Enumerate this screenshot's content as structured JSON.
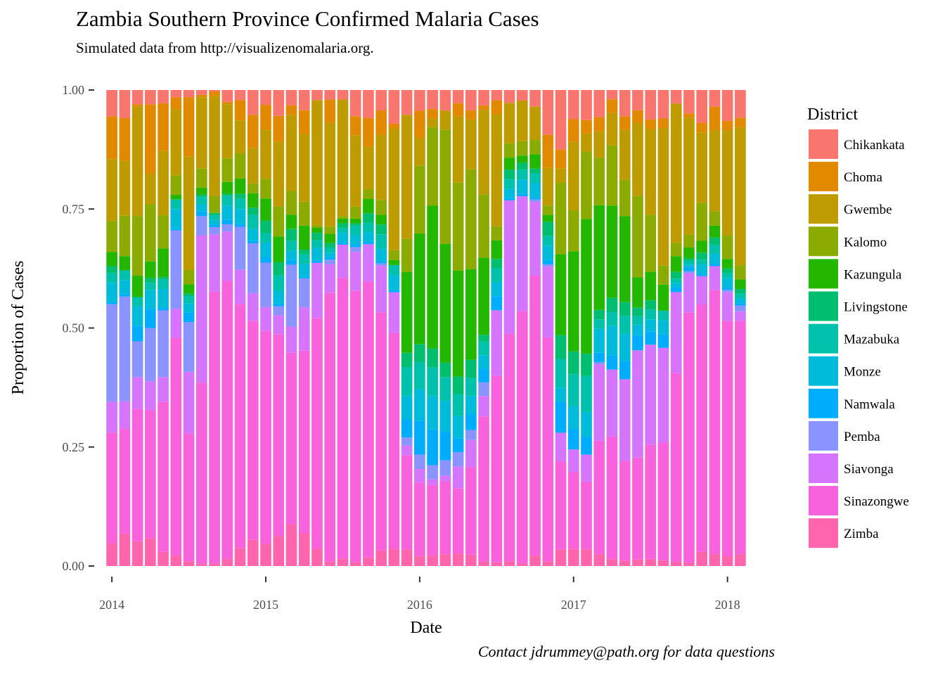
{
  "chart_data": {
    "type": "bar",
    "stacked": true,
    "title": "Zambia Southern Province Confirmed Malaria Cases",
    "subtitle": "Simulated data from http://visualizenomalaria.org.",
    "xlabel": "Date",
    "ylabel": "Proportion of Cases",
    "caption": "Contact jdrummey@path.org for data questions",
    "ylim": [
      0,
      1
    ],
    "y_ticks": [
      "0.00",
      "0.25",
      "0.50",
      "0.75",
      "1.00"
    ],
    "x_ticks": [
      "2014",
      "2015",
      "2016",
      "2017",
      "2018"
    ],
    "x_tick_positions": [
      0,
      12,
      24,
      36,
      48
    ],
    "legend": {
      "title": "District",
      "position": "right"
    },
    "grid": false,
    "colors": [
      "#F8766D",
      "#E18A00",
      "#BE9C00",
      "#8CAB00",
      "#24B700",
      "#00BE70",
      "#00C1AB",
      "#00BBDA",
      "#00ACFC",
      "#8B93FF",
      "#D575FE",
      "#F962DD",
      "#FF65AC"
    ],
    "series_order_top_to_bottom": [
      "Chikankata",
      "Choma",
      "Gwembe",
      "Kalomo",
      "Kazungula",
      "Livingstone",
      "Mazabuka",
      "Monze",
      "Namwala",
      "Pemba",
      "Siavonga",
      "Sinazongwe",
      "Zimba"
    ],
    "x": [
      "2014-01",
      "2014-02",
      "2014-03",
      "2014-04",
      "2014-05",
      "2014-06",
      "2014-07",
      "2014-08",
      "2014-09",
      "2014-10",
      "2014-11",
      "2014-12",
      "2015-01",
      "2015-02",
      "2015-03",
      "2015-04",
      "2015-05",
      "2015-06",
      "2015-07",
      "2015-08",
      "2015-09",
      "2015-10",
      "2015-11",
      "2015-12",
      "2016-01",
      "2016-02",
      "2016-03",
      "2016-04",
      "2016-05",
      "2016-06",
      "2016-07",
      "2016-08",
      "2016-09",
      "2016-10",
      "2016-11",
      "2016-12",
      "2017-01",
      "2017-02",
      "2017-03",
      "2017-04",
      "2017-05",
      "2017-06",
      "2017-07",
      "2017-08",
      "2017-09",
      "2017-10",
      "2017-11",
      "2017-12",
      "2018-01",
      "2018-02"
    ],
    "series": [
      {
        "name": "Zimba",
        "values": [
          0.048,
          0.068,
          0.052,
          0.058,
          0.03,
          0.022,
          0.01,
          0.005,
          0.005,
          0.015,
          0.035,
          0.055,
          0.045,
          0.058,
          0.088,
          0.068,
          0.035,
          0.01,
          0.015,
          0.008,
          0.018,
          0.032,
          0.035,
          0.035,
          0.022,
          0.022,
          0.025,
          0.028,
          0.025,
          0.01,
          0.008,
          0.01,
          0.005,
          0.022,
          0.01,
          0.035,
          0.038,
          0.038,
          0.025,
          0.015,
          0.012,
          0.015,
          0.015,
          0.012,
          0.01,
          0.008,
          0.03,
          0.025,
          0.02,
          0.025
        ]
      },
      {
        "name": "Sinazongwe",
        "values": [
          0.232,
          0.22,
          0.278,
          0.27,
          0.315,
          0.458,
          0.27,
          0.38,
          0.572,
          0.59,
          0.482,
          0.46,
          0.432,
          0.39,
          0.36,
          0.38,
          0.46,
          0.57,
          0.59,
          0.57,
          0.58,
          0.49,
          0.435,
          0.198,
          0.163,
          0.148,
          0.153,
          0.148,
          0.193,
          0.32,
          0.4,
          0.478,
          0.528,
          0.588,
          0.475,
          0.185,
          0.168,
          0.15,
          0.238,
          0.265,
          0.22,
          0.238,
          0.24,
          0.248,
          0.42,
          0.578,
          0.525,
          0.555,
          0.495,
          0.49
        ]
      },
      {
        "name": "Siavonga",
        "values": [
          0.065,
          0.058,
          0.067,
          0.06,
          0.052,
          0.06,
          0.13,
          0.31,
          0.12,
          0.105,
          0.068,
          0.058,
          0.048,
          0.037,
          0.055,
          0.09,
          0.11,
          0.06,
          0.07,
          0.082,
          0.078,
          0.096,
          0.082,
          0.02,
          0.03,
          0.012,
          0.012,
          0.05,
          0.06,
          0.045,
          0.14,
          0.28,
          0.24,
          0.155,
          0.15,
          0.06,
          0.05,
          0.06,
          0.16,
          0.145,
          0.18,
          0.25,
          0.21,
          0.2,
          0.18,
          0.09,
          0.06,
          0.05,
          0.06,
          0.02
        ]
      },
      {
        "name": "Pemba",
        "values": [
          0.205,
          0.22,
          0.075,
          0.112,
          0.14,
          0.165,
          0.105,
          0.04,
          0.015,
          0.015,
          0.085,
          0.105,
          0.09,
          0.017,
          0.13,
          0.06,
          0.0,
          0.01,
          0.0,
          0.01,
          0.0,
          0.005,
          0.0,
          0.017,
          0.032,
          0.03,
          0.032,
          0.032,
          0.022,
          0.03,
          0.0,
          0.0,
          0.0,
          0.005,
          0.005,
          0.0,
          0.0,
          0.0,
          0.005,
          0.0,
          0.0,
          0.0,
          0.0,
          0.0,
          0.0,
          0.005,
          0.0,
          0.0,
          0.005,
          0.012
        ]
      },
      {
        "name": "Namwala",
        "values": [
          0.005,
          0.005,
          0.033,
          0.04,
          0.005,
          0.005,
          0.02,
          0.01,
          0.005,
          0.01,
          0.005,
          0.005,
          0.01,
          0.005,
          0.01,
          0.005,
          0.005,
          0.005,
          0.005,
          0.005,
          0.005,
          0.005,
          0.005,
          0.038,
          0.075,
          0.075,
          0.06,
          0.032,
          0.035,
          0.03,
          0.03,
          0.005,
          0.005,
          0.005,
          0.01,
          0.065,
          0.045,
          0.04,
          0.02,
          0.03,
          0.04,
          0.035,
          0.028,
          0.028,
          0.01,
          0.01,
          0.005,
          0.005,
          0.005,
          0.005
        ]
      },
      {
        "name": "Monze",
        "values": [
          0.04,
          0.03,
          0.04,
          0.04,
          0.04,
          0.04,
          0.02,
          0.015,
          0.01,
          0.03,
          0.03,
          0.025,
          0.03,
          0.025,
          0.02,
          0.025,
          0.025,
          0.01,
          0.02,
          0.02,
          0.02,
          0.025,
          0.03,
          0.05,
          0.07,
          0.07,
          0.065,
          0.05,
          0.04,
          0.03,
          0.03,
          0.02,
          0.03,
          0.03,
          0.03,
          0.03,
          0.05,
          0.055,
          0.05,
          0.065,
          0.06,
          0.025,
          0.025,
          0.03,
          0.01,
          0.005,
          0.02,
          0.02,
          0.02,
          0.01
        ]
      },
      {
        "name": "Mazabuka",
        "values": [
          0.02,
          0.02,
          0.02,
          0.015,
          0.02,
          0.02,
          0.015,
          0.015,
          0.01,
          0.02,
          0.02,
          0.03,
          0.02,
          0.03,
          0.02,
          0.02,
          0.015,
          0.01,
          0.01,
          0.02,
          0.02,
          0.03,
          0.02,
          0.06,
          0.06,
          0.06,
          0.05,
          0.05,
          0.04,
          0.03,
          0.03,
          0.02,
          0.02,
          0.02,
          0.02,
          0.06,
          0.07,
          0.08,
          0.02,
          0.03,
          0.04,
          0.02,
          0.02,
          0.02,
          0.01,
          0.01,
          0.01,
          0.02,
          0.01,
          0.01
        ]
      },
      {
        "name": "Livingstone",
        "values": [
          0.015,
          0.0,
          0.0,
          0.01,
          0.005,
          0.0,
          0.005,
          0.005,
          0.005,
          0.005,
          0.01,
          0.015,
          0.025,
          0.025,
          0.025,
          0.01,
          0.015,
          0.01,
          0.01,
          0.005,
          0.02,
          0.02,
          0.0,
          0.03,
          0.04,
          0.04,
          0.03,
          0.04,
          0.04,
          0.015,
          0.02,
          0.02,
          0.015,
          0.01,
          0.03,
          0.05,
          0.05,
          0.05,
          0.02,
          0.03,
          0.03,
          0.02,
          0.02,
          0.0,
          0.015,
          0.005,
          0.015,
          0.015,
          0.01,
          0.01
        ]
      },
      {
        "name": "Kazungula",
        "values": [
          0.03,
          0.03,
          0.045,
          0.035,
          0.06,
          0.01,
          0.02,
          0.015,
          0.0,
          0.025,
          0.03,
          0.03,
          0.045,
          0.05,
          0.03,
          0.05,
          0.01,
          0.02,
          0.01,
          0.01,
          0.03,
          0.02,
          0.01,
          0.17,
          0.245,
          0.3,
          0.25,
          0.24,
          0.2,
          0.17,
          0.04,
          0.025,
          0.015,
          0.03,
          0.015,
          0.17,
          0.22,
          0.3,
          0.22,
          0.2,
          0.19,
          0.07,
          0.06,
          0.055,
          0.035,
          0.025,
          0.025,
          0.025,
          0.02,
          0.02
        ]
      },
      {
        "name": "Kalomo",
        "values": [
          0.065,
          0.085,
          0.125,
          0.12,
          0.07,
          0.04,
          0.03,
          0.04,
          0.035,
          0.05,
          0.05,
          0.02,
          0.04,
          0.058,
          0.05,
          0.05,
          0.005,
          0.015,
          0.005,
          0.025,
          0.02,
          0.03,
          0.02,
          0.07,
          0.15,
          0.165,
          0.24,
          0.2,
          0.22,
          0.14,
          0.03,
          0.03,
          0.03,
          0.03,
          0.02,
          0.15,
          0.09,
          0.15,
          0.1,
          0.13,
          0.08,
          0.19,
          0.12,
          0.04,
          0.03,
          0.03,
          0.08,
          0.03,
          0.05,
          0.03
        ]
      },
      {
        "name": "Gwembe",
        "values": [
          0.13,
          0.115,
          0.23,
          0.065,
          0.135,
          0.14,
          0.24,
          0.15,
          0.21,
          0.115,
          0.065,
          0.075,
          0.1,
          0.125,
          0.16,
          0.14,
          0.25,
          0.22,
          0.245,
          0.15,
          0.09,
          0.135,
          0.245,
          0.26,
          0.062,
          0.018,
          0.04,
          0.15,
          0.11,
          0.186,
          0.24,
          0.085,
          0.085,
          0.07,
          0.08,
          0.03,
          0.15,
          0.04,
          0.055,
          0.07,
          0.11,
          0.17,
          0.18,
          0.29,
          0.31,
          0.27,
          0.15,
          0.17,
          0.22,
          0.29
        ]
      },
      {
        "name": "Choma",
        "values": [
          0.09,
          0.09,
          0.005,
          0.145,
          0.1,
          0.025,
          0.125,
          0.005,
          0.01,
          0.005,
          0.04,
          0.07,
          0.05,
          0.05,
          0.02,
          0.05,
          0.0,
          0.05,
          0.0,
          0.04,
          0.06,
          0.05,
          0.01,
          0.0,
          0.06,
          0.02,
          0.0,
          0.03,
          0.02,
          0.01,
          0.03,
          0.0,
          0.0,
          0.0,
          0.07,
          0.04,
          0.05,
          0.03,
          0.03,
          0.03,
          0.03,
          0.03,
          0.02,
          0.02,
          0.0,
          0.01,
          0.02,
          0.05,
          0.02,
          0.02
        ]
      },
      {
        "name": "Chikankata",
        "values": [
          0.055,
          0.059,
          0.03,
          0.03,
          0.028,
          0.015,
          0.015,
          0.01,
          0.003,
          0.025,
          0.02,
          0.052,
          0.03,
          0.05,
          0.032,
          0.042,
          0.02,
          0.02,
          0.02,
          0.055,
          0.059,
          0.042,
          0.068,
          0.052,
          0.046,
          0.04,
          0.043,
          0.03,
          0.045,
          0.034,
          0.022,
          0.027,
          0.022,
          0.035,
          0.095,
          0.125,
          0.064,
          0.067,
          0.057,
          0.02,
          0.058,
          0.047,
          0.062,
          0.06,
          0.03,
          0.054,
          0.07,
          0.035,
          0.065,
          0.058
        ]
      }
    ]
  }
}
